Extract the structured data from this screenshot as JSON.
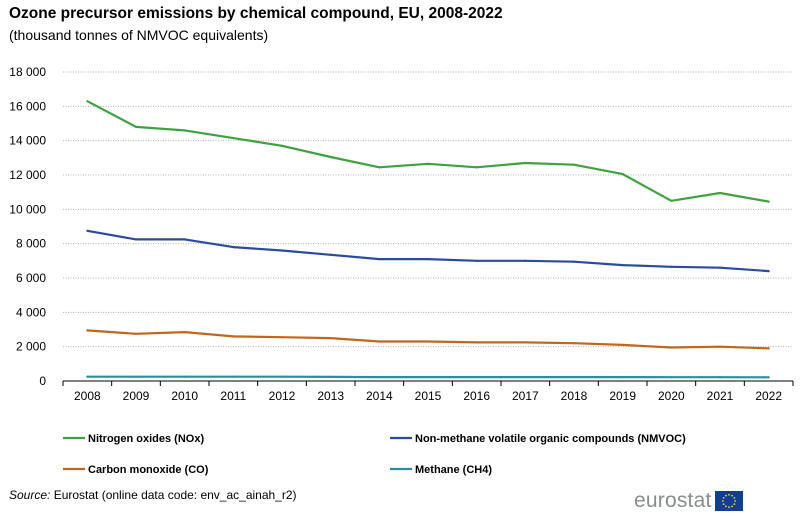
{
  "header": {
    "title": "Ozone precursor emissions by chemical compound, EU, 2008-2022",
    "subtitle": "(thousand  tonnes of NMVOC  equivalents)"
  },
  "footer": {
    "source_label": "Source:",
    "source_text": " Eurostat (online data code: env_ac_ainah_r2)",
    "logo_text": "eurostat"
  },
  "chart_data": {
    "type": "line",
    "title": "Ozone precursor emissions by chemical compound, EU, 2008-2022",
    "ylabel": "thousand tonnes of NMVOC equivalents",
    "ylim": [
      0,
      18000
    ],
    "yticks": [
      0,
      2000,
      4000,
      6000,
      8000,
      10000,
      12000,
      14000,
      16000,
      18000
    ],
    "ytick_labels": [
      "0",
      "2 000",
      "4 000",
      "6 000",
      "8 000",
      "10 000",
      "12 000",
      "14 000",
      "16 000",
      "18 000"
    ],
    "categories": [
      "2008",
      "2009",
      "2010",
      "2011",
      "2012",
      "2013",
      "2014",
      "2015",
      "2016",
      "2017",
      "2018",
      "2019",
      "2020",
      "2021",
      "2022"
    ],
    "grid": true,
    "legend_position": "bottom",
    "series": [
      {
        "name": "Nitrogen oxides (NOx)",
        "color": "#3ea33e",
        "values": [
          16300,
          14800,
          14600,
          14150,
          13700,
          13050,
          12450,
          12650,
          12450,
          12700,
          12600,
          12050,
          10500,
          10950,
          10450
        ]
      },
      {
        "name": "Non-methane volatile organic compounds (NMVOC)",
        "color": "#2b4ba0",
        "values": [
          8750,
          8250,
          8250,
          7800,
          7600,
          7350,
          7100,
          7100,
          7000,
          7000,
          6950,
          6750,
          6650,
          6600,
          6400
        ]
      },
      {
        "name": "Carbon monoxide (CO)",
        "color": "#c3661b",
        "values": [
          2950,
          2750,
          2850,
          2600,
          2550,
          2500,
          2300,
          2300,
          2250,
          2250,
          2200,
          2100,
          1950,
          2000,
          1900
        ]
      },
      {
        "name": "Methane (CH4)",
        "color": "#28909a",
        "values": [
          250,
          250,
          250,
          250,
          250,
          240,
          230,
          230,
          230,
          230,
          230,
          225,
          220,
          220,
          215
        ]
      }
    ]
  }
}
